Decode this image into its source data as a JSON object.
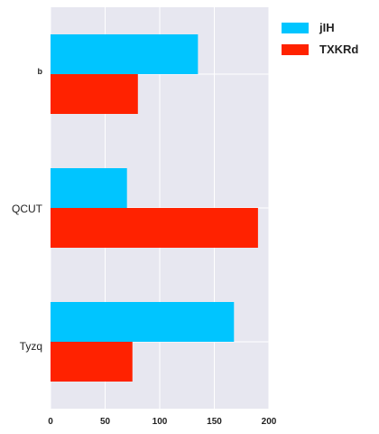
{
  "chart_data": {
    "type": "bar",
    "orientation": "horizontal",
    "categories": [
      "b",
      "QCUT",
      "Tyzq"
    ],
    "series": [
      {
        "name": "jIH",
        "values": [
          135,
          70,
          168
        ],
        "color": "#00c5ff"
      },
      {
        "name": "TXKRd",
        "values": [
          80,
          190,
          75
        ],
        "color": "#ff2200"
      }
    ],
    "x_ticks": [
      "0",
      "50",
      "100",
      "150",
      "200"
    ],
    "xlim": [
      0,
      200
    ],
    "grid": true,
    "legend_position": "top-right",
    "background": "#e7e7f0"
  }
}
